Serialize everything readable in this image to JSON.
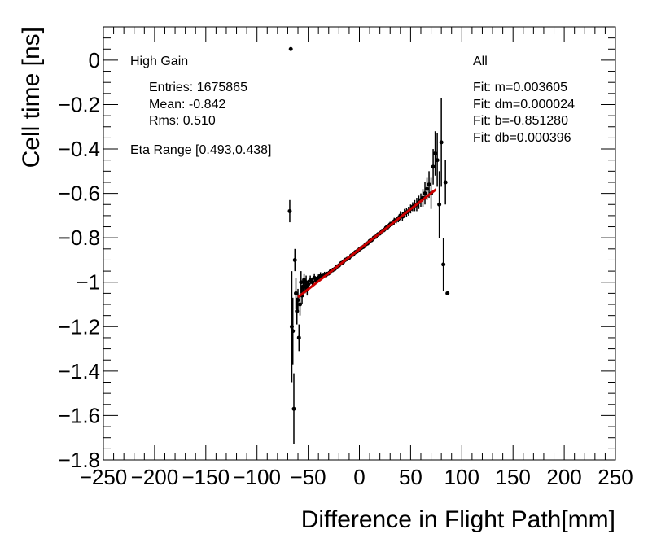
{
  "chart_data": {
    "type": "scatter",
    "xlabel": "Difference in Flight Path[mm]",
    "ylabel": "Cell time [ns]",
    "xlim": [
      -250,
      250
    ],
    "ylim": [
      -1.8,
      0.15
    ],
    "x_ticks": [
      -250,
      -200,
      -150,
      -100,
      -50,
      0,
      50,
      100,
      150,
      200,
      250
    ],
    "x_tick_labels": [
      "−250",
      "−200",
      "−150",
      "−100",
      "−50",
      "0",
      "50",
      "100",
      "150",
      "200",
      "250"
    ],
    "y_ticks": [
      0,
      -0.2,
      -0.4,
      -0.6,
      -0.8,
      -1,
      -1.2,
      -1.4,
      -1.6,
      -1.8
    ],
    "y_tick_labels": [
      "0",
      "−0.2",
      "−0.4",
      "−0.6",
      "−0.8",
      "−1",
      "−1.2",
      "−1.4",
      "−1.6",
      "−1.8"
    ],
    "grid": false,
    "annotations": {
      "gain": "High Gain",
      "entries": "Entries: 1675865",
      "mean": "Mean: -0.842",
      "rms": "Rms: 0.510",
      "eta": "Eta Range [0.493,0.438]",
      "selection": "All",
      "fit_m": "Fit: m=0.003605",
      "fit_dm": "Fit: dm=0.000024",
      "fit_b": "Fit: b=-0.851280",
      "fit_db": "Fit: db=0.000396"
    },
    "fit_line": {
      "m": 0.003605,
      "b": -0.85128,
      "x_range": [
        -60,
        75
      ],
      "color": "#cc0000"
    },
    "series": [
      {
        "color": "#000000",
        "points": [
          [
            -67,
            0.05,
            0
          ],
          [
            -68,
            -0.68,
            0.05
          ],
          [
            -66,
            -1.2,
            0.25
          ],
          [
            -65,
            -1.22,
            0.15
          ],
          [
            -64,
            -1.57,
            0.16
          ],
          [
            -63,
            -0.9,
            0.05
          ],
          [
            -62,
            -1.05,
            0.07
          ],
          [
            -61,
            -1.13,
            0.06
          ],
          [
            -60,
            -1.08,
            0.05
          ],
          [
            -59,
            -1.25,
            0.06
          ],
          [
            -58,
            -1.1,
            0.05
          ],
          [
            -57,
            -1.0,
            0.05
          ],
          [
            -56,
            -1.06,
            0.04
          ],
          [
            -55,
            -1.02,
            0.04
          ],
          [
            -54,
            -0.99,
            0.03
          ],
          [
            -53,
            -1.02,
            0.03
          ],
          [
            -52,
            -1.0,
            0.03
          ],
          [
            -51,
            -1.03,
            0.03
          ],
          [
            -50,
            -1.01,
            0.02
          ],
          [
            -48,
            -0.99,
            0.02
          ],
          [
            -46,
            -1.0,
            0.02
          ],
          [
            -44,
            -0.98,
            0.02
          ],
          [
            -42,
            -0.99,
            0.015
          ],
          [
            -40,
            -0.98,
            0.015
          ],
          [
            -38,
            -0.97,
            0.015
          ],
          [
            -36,
            -0.97,
            0.012
          ],
          [
            -34,
            -0.965,
            0.012
          ],
          [
            -32,
            -0.965,
            0.012
          ],
          [
            -30,
            -0.96,
            0.01
          ],
          [
            -28,
            -0.95,
            0.01
          ],
          [
            -26,
            -0.945,
            0.01
          ],
          [
            -24,
            -0.94,
            0.01
          ],
          [
            -22,
            -0.93,
            0.01
          ],
          [
            -20,
            -0.925,
            0.01
          ],
          [
            -18,
            -0.915,
            0.01
          ],
          [
            -16,
            -0.91,
            0.01
          ],
          [
            -14,
            -0.9,
            0.01
          ],
          [
            -12,
            -0.895,
            0.01
          ],
          [
            -10,
            -0.89,
            0.01
          ],
          [
            -8,
            -0.88,
            0.01
          ],
          [
            -6,
            -0.875,
            0.01
          ],
          [
            -4,
            -0.865,
            0.01
          ],
          [
            -2,
            -0.86,
            0.01
          ],
          [
            0,
            -0.852,
            0.01
          ],
          [
            2,
            -0.845,
            0.01
          ],
          [
            4,
            -0.84,
            0.01
          ],
          [
            6,
            -0.83,
            0.01
          ],
          [
            8,
            -0.825,
            0.01
          ],
          [
            10,
            -0.815,
            0.01
          ],
          [
            12,
            -0.81,
            0.01
          ],
          [
            14,
            -0.8,
            0.01
          ],
          [
            16,
            -0.795,
            0.01
          ],
          [
            18,
            -0.785,
            0.01
          ],
          [
            20,
            -0.78,
            0.01
          ],
          [
            22,
            -0.77,
            0.01
          ],
          [
            24,
            -0.765,
            0.01
          ],
          [
            26,
            -0.755,
            0.012
          ],
          [
            28,
            -0.75,
            0.012
          ],
          [
            30,
            -0.74,
            0.012
          ],
          [
            32,
            -0.735,
            0.012
          ],
          [
            34,
            -0.725,
            0.015
          ],
          [
            36,
            -0.72,
            0.015
          ],
          [
            38,
            -0.715,
            0.015
          ],
          [
            40,
            -0.7,
            0.02
          ],
          [
            42,
            -0.705,
            0.02
          ],
          [
            44,
            -0.69,
            0.02
          ],
          [
            46,
            -0.685,
            0.02
          ],
          [
            48,
            -0.68,
            0.02
          ],
          [
            50,
            -0.67,
            0.02
          ],
          [
            52,
            -0.66,
            0.02
          ],
          [
            54,
            -0.655,
            0.025
          ],
          [
            56,
            -0.65,
            0.03
          ],
          [
            58,
            -0.64,
            0.03
          ],
          [
            60,
            -0.63,
            0.03
          ],
          [
            62,
            -0.62,
            0.04
          ],
          [
            64,
            -0.6,
            0.05
          ],
          [
            66,
            -0.58,
            0.05
          ],
          [
            68,
            -0.56,
            0.06
          ],
          [
            70,
            -0.6,
            0.07
          ],
          [
            72,
            -0.48,
            0.08
          ],
          [
            74,
            -0.42,
            0.1
          ],
          [
            76,
            -0.45,
            0.12
          ],
          [
            78,
            -0.65,
            0.15
          ],
          [
            80,
            -0.37,
            0.2
          ],
          [
            82,
            -0.92,
            0.12
          ],
          [
            84,
            -0.55,
            0.1
          ],
          [
            86,
            -1.05,
            0
          ]
        ]
      }
    ]
  }
}
